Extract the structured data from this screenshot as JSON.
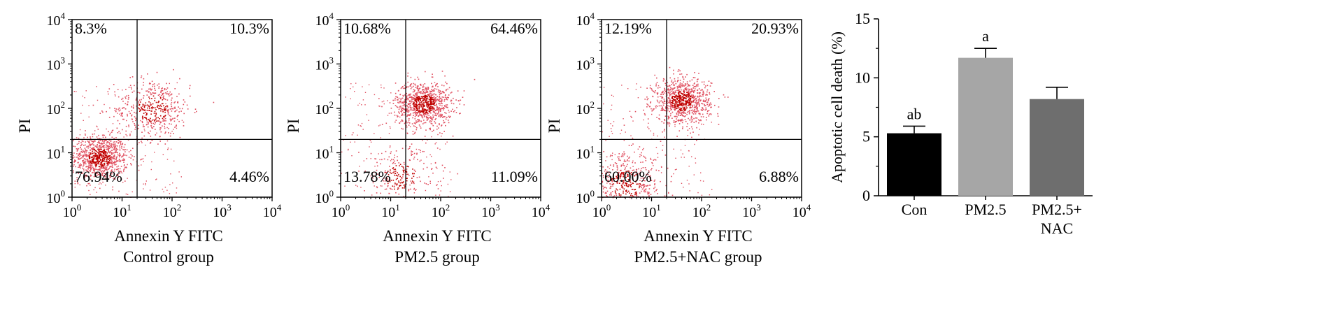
{
  "figure": {
    "flow_panels": [
      {
        "xlabel": "Annexin Y FITC",
        "group": "Control group",
        "ylabel": "PI",
        "quadrants": {
          "upper_left": "8.3%",
          "upper_right": "10.3%",
          "lower_left": "76.94%",
          "lower_right": "4.46%"
        }
      },
      {
        "xlabel": "Annexin Y FITC",
        "group": "PM2.5 group",
        "ylabel": "PI",
        "quadrants": {
          "upper_left": "10.68%",
          "upper_right": "64.46%",
          "lower_left": "13.78%",
          "lower_right": "11.09%"
        }
      },
      {
        "xlabel": "Annexin Y FITC",
        "group": "PM2.5+NAC group",
        "ylabel": "PI",
        "quadrants": {
          "upper_left": "12.19%",
          "upper_right": "20.93%",
          "lower_left": "60.00%",
          "lower_right": "6.88%"
        }
      }
    ],
    "log_ticks": {
      "base": "10",
      "exponents": [
        "0",
        "1",
        "2",
        "3",
        "4"
      ]
    },
    "colors": {
      "dots_dense": "#c00000",
      "dots_sparse": "#e05060",
      "axis": "#000000"
    }
  },
  "chart_data": [
    {
      "type": "scatter",
      "xlabel": "Annexin Y FITC",
      "ylabel": "PI",
      "scale": "log",
      "xlim": [
        1,
        10000
      ],
      "ylim": [
        1,
        10000
      ],
      "gates": {
        "x": 20,
        "y": 20
      },
      "quadrant_percent": {
        "Q1_upper_left": 8.3,
        "Q2_upper_right": 10.3,
        "Q3_lower_left": 76.94,
        "Q4_lower_right": 4.46
      },
      "clusters": [
        {
          "x": 3.5,
          "y": 8,
          "density": "high"
        },
        {
          "x": 40,
          "y": 100,
          "density": "medium"
        }
      ]
    },
    {
      "type": "scatter",
      "xlabel": "Annexin Y FITC",
      "ylabel": "PI",
      "scale": "log",
      "xlim": [
        1,
        10000
      ],
      "ylim": [
        1,
        10000
      ],
      "gates": {
        "x": 20,
        "y": 20
      },
      "quadrant_percent": {
        "Q1_upper_left": 10.68,
        "Q2_upper_right": 64.46,
        "Q3_lower_left": 13.78,
        "Q4_lower_right": 11.09
      },
      "clusters": [
        {
          "x": 45,
          "y": 130,
          "density": "high"
        },
        {
          "x": 15,
          "y": 3,
          "density": "low"
        }
      ]
    },
    {
      "type": "scatter",
      "xlabel": "Annexin Y FITC",
      "ylabel": "PI",
      "scale": "log",
      "xlim": [
        1,
        10000
      ],
      "ylim": [
        1,
        10000
      ],
      "gates": {
        "x": 20,
        "y": 20
      },
      "quadrant_percent": {
        "Q1_upper_left": 12.19,
        "Q2_upper_right": 20.93,
        "Q3_lower_left": 60.0,
        "Q4_lower_right": 6.88
      },
      "clusters": [
        {
          "x": 3,
          "y": 2,
          "density": "medium"
        },
        {
          "x": 40,
          "y": 150,
          "density": "high"
        }
      ]
    },
    {
      "type": "bar",
      "categories": [
        "Con",
        "PM2.5",
        "PM2.5+\nNAC"
      ],
      "category_labels": [
        [
          "Con"
        ],
        [
          "PM2.5"
        ],
        [
          "PM2.5+",
          "NAC"
        ]
      ],
      "values": [
        5.3,
        11.7,
        8.2
      ],
      "errors": [
        0.6,
        0.8,
        1.0
      ],
      "annotations": [
        "ab",
        "a",
        ""
      ],
      "colors": [
        "#000000",
        "#a6a6a6",
        "#6e6e6e"
      ],
      "ylabel": "Apoptotic cell death (%)",
      "xlabel": "",
      "ylim": [
        0,
        15
      ],
      "yticks": [
        "0",
        "5",
        "10",
        "15"
      ]
    }
  ]
}
